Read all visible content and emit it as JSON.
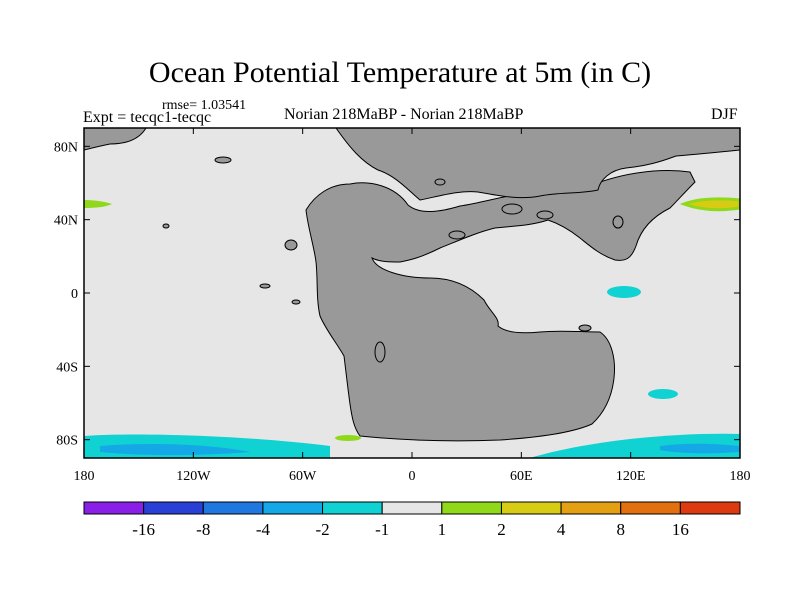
{
  "title": "Ocean Potential Temperature at 5m (in C)",
  "rmse_label": "rmse= 1.03541",
  "expt_label": "Expt = tecqc1-tecqc",
  "comparison_label": "Norian 218MaBP - Norian 218MaBP",
  "season": "DJF",
  "lat_ticks": [
    "80N",
    "40N",
    "0",
    "40S",
    "80S"
  ],
  "lat_values": [
    80,
    40,
    0,
    -40,
    -80
  ],
  "lon_ticks": [
    "180",
    "120W",
    "60W",
    "0",
    "60E",
    "120E",
    "180"
  ],
  "lon_values": [
    -180,
    -120,
    -60,
    0,
    60,
    120,
    180
  ],
  "colorbar": {
    "labels": [
      "-16",
      "-8",
      "-4",
      "-2",
      "-1",
      "1",
      "2",
      "4",
      "8",
      "16"
    ],
    "colors": [
      "#8a1fe8",
      "#2a3fd6",
      "#1f78e0",
      "#15a8e6",
      "#10d2d2",
      "#e6e6e6",
      "#8fd81a",
      "#d7cc13",
      "#e3a012",
      "#e3700f",
      "#dd3a12"
    ]
  },
  "colors": {
    "land": "#999999",
    "ocean": "#e6e6e6",
    "frame": "#000000"
  }
}
